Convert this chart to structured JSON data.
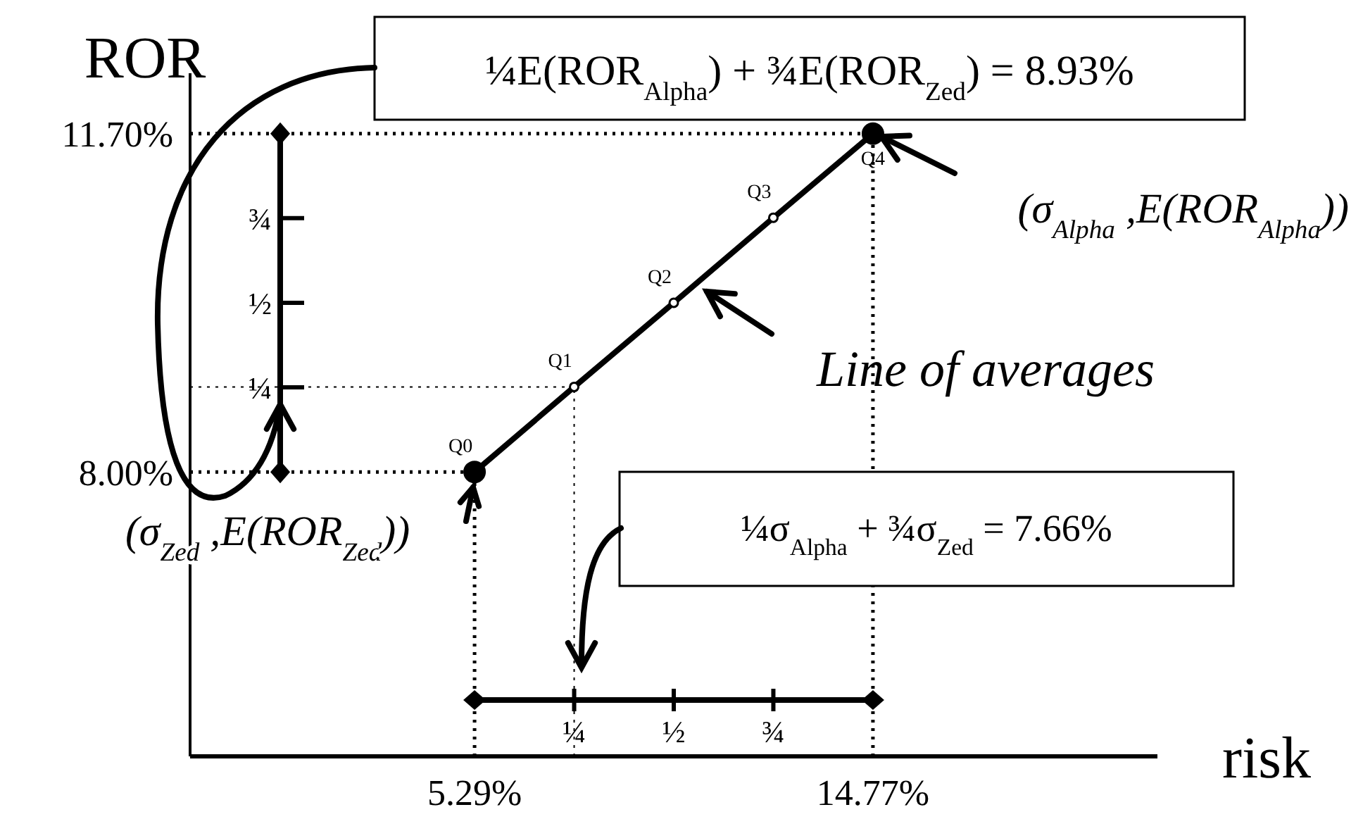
{
  "chart_data": {
    "type": "line",
    "xlabel": "risk",
    "ylabel": "ROR",
    "x": [
      5.29,
      7.66,
      10.03,
      12.4,
      14.77
    ],
    "series": [
      {
        "color": "#000000",
        "values": [
          8.0,
          8.93,
          9.85,
          10.78,
          11.7
        ]
      }
    ],
    "marker": "circle",
    "xlim": [
      -1.48,
      21.54
    ],
    "ylim": [
      4.89,
      12.36
    ],
    "xticks": [
      {
        "value": 5.29,
        "label": "5.29%"
      },
      {
        "value": 14.77,
        "label": "14.77%"
      }
    ],
    "yticks": [
      {
        "value": 8.0,
        "label": "8.00%"
      },
      {
        "value": 11.7,
        "label": "11.70%"
      }
    ],
    "ref_lines": [
      {
        "axis": "y",
        "value": 11.7,
        "line_style": "dotted"
      },
      {
        "axis": "y",
        "value": 8.0,
        "line_style": "dotted"
      },
      {
        "axis": "x",
        "value": 5.29,
        "line_style": "dotted"
      },
      {
        "axis": "x",
        "value": 14.77,
        "line_style": "dotted"
      },
      {
        "axis": "y",
        "value": 8.93,
        "line_style": "dotted"
      },
      {
        "axis": "x",
        "value": 7.66,
        "line_style": "dotted"
      }
    ],
    "annotations": [
      "¼E(ROR$_{Alpha}$) + ¾E(ROR$_{Zed}$) = 8.93%",
      "¼σ$_{Alpha}$ + ¾σ$_{Zed}$ = 7.66%",
      "(σ$_{Alpha}$ ,E(ROR$_{Alpha}$))",
      {
        "text": "(σ$_{Zed}$ ,E(ROR$_{Zed}$))",
        "x": 5.29,
        "y": 8.0
      },
      "Line of averages",
      {
        "text": "Q0",
        "x": 5.29,
        "y": 8.0
      },
      {
        "text": "Q1",
        "x": 7.66,
        "y": 8.93
      },
      {
        "text": "Q2",
        "x": 10.03,
        "y": 9.85
      },
      {
        "text": "Q3",
        "x": 12.4,
        "y": 10.78
      },
      {
        "text": "Q4",
        "x": 14.77,
        "y": 11.7
      },
      "¼",
      "½",
      "¾",
      "¼",
      "½",
      "¾"
    ]
  }
}
